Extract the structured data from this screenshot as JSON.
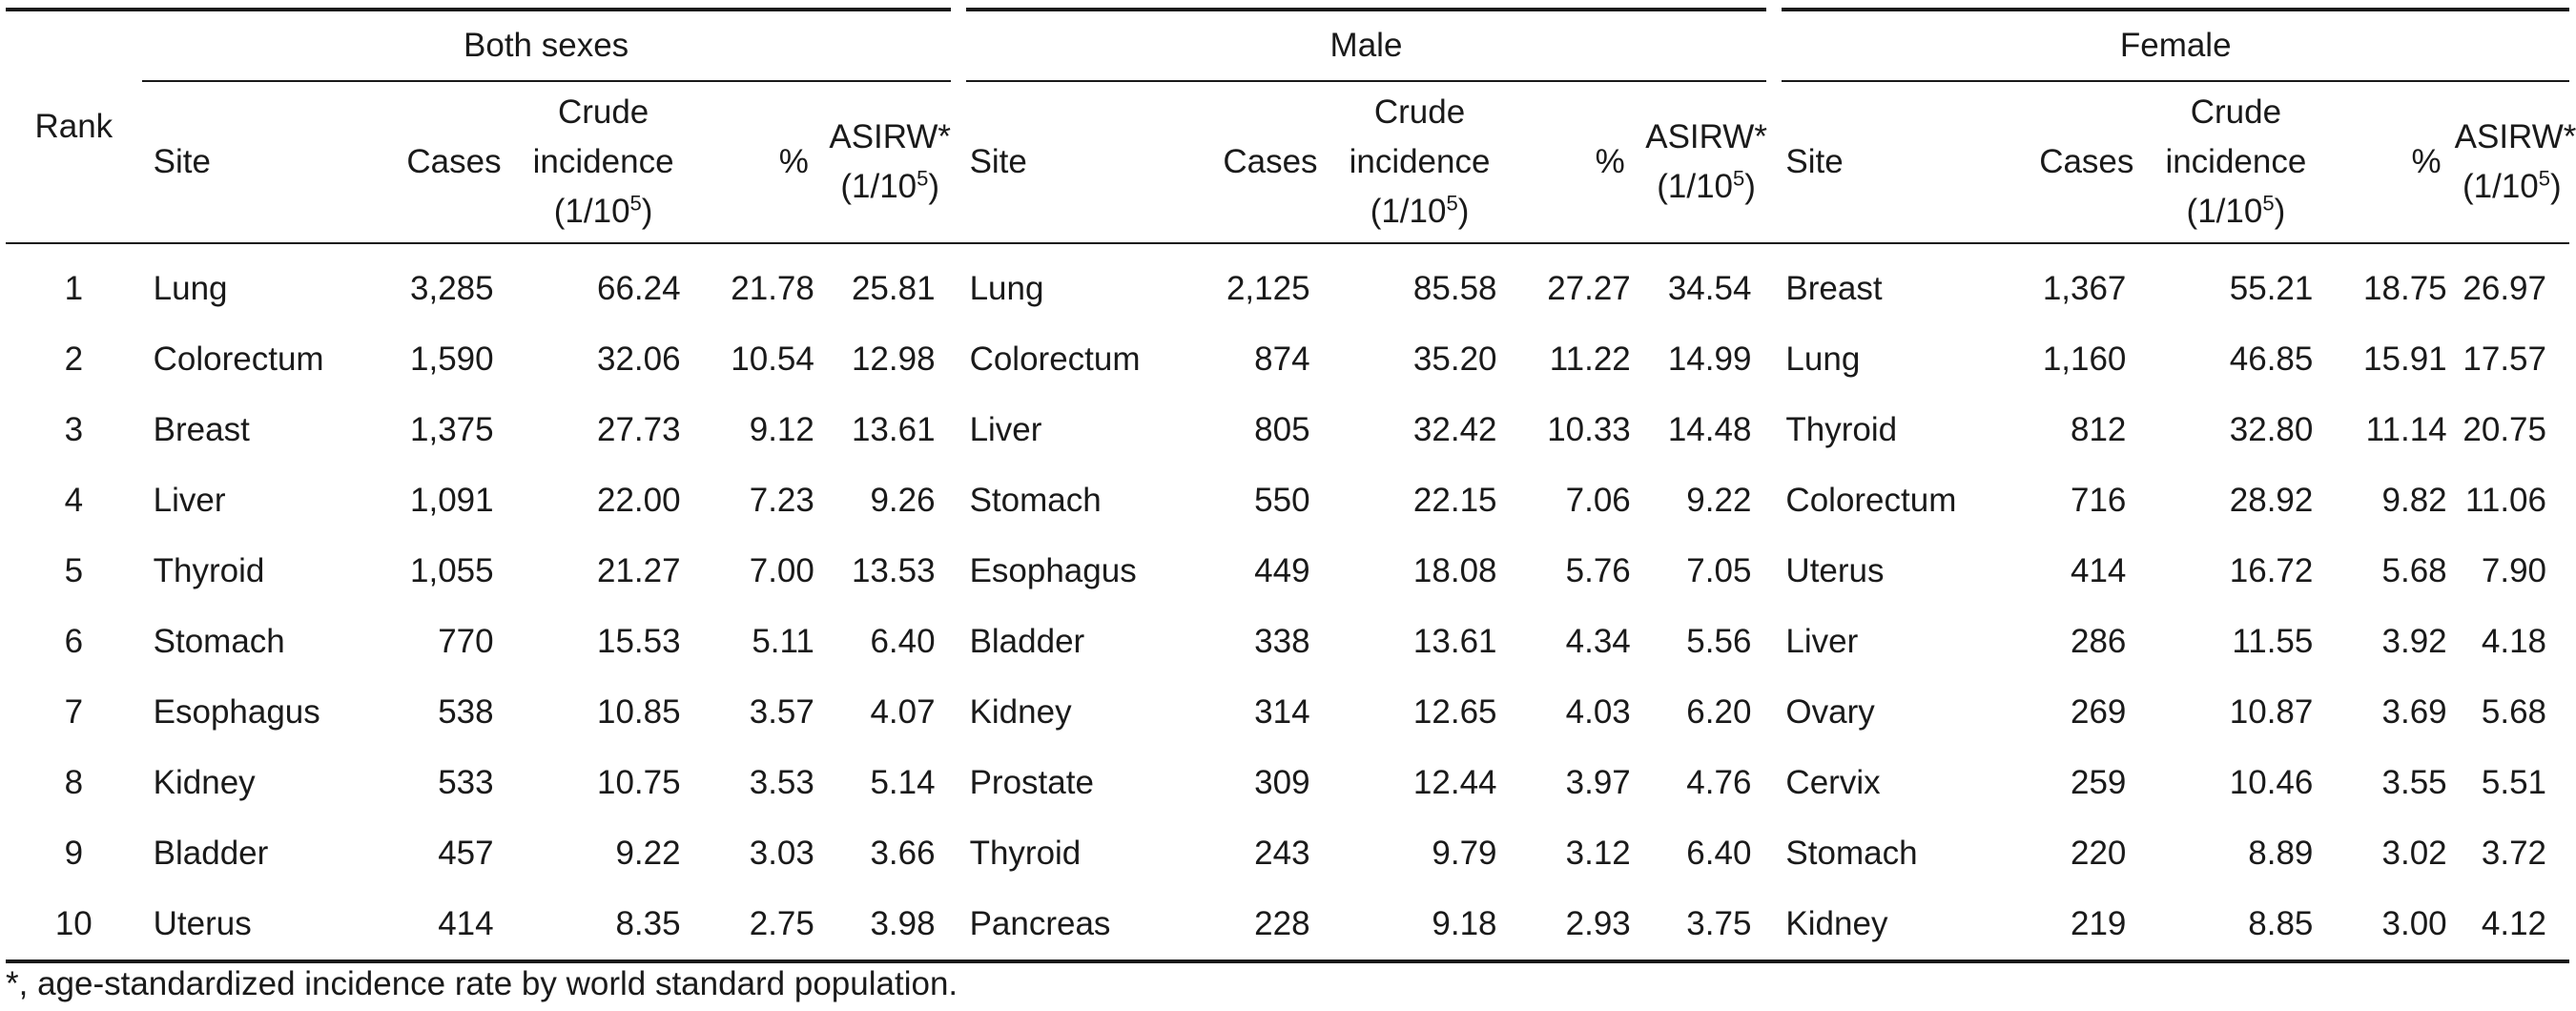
{
  "header": {
    "rank": "Rank",
    "groups": [
      "Both sexes",
      "Male",
      "Female"
    ],
    "site": "Site",
    "cases": "Cases",
    "crude_line1": "Crude",
    "crude_line2": "incidence",
    "crude_line3a": "(1/10",
    "crude_sup": "5",
    "crude_line3b": ")",
    "pct": "%",
    "asirw_line1": "ASIRW*",
    "asirw_line2a": "(1/10",
    "asirw_sup": "5",
    "asirw_line2b": ")"
  },
  "rows": [
    {
      "rank": "1",
      "both": [
        "Lung",
        "3,285",
        "66.24",
        "21.78",
        "25.81"
      ],
      "male": [
        "Lung",
        "2,125",
        "85.58",
        "27.27",
        "34.54"
      ],
      "female": [
        "Breast",
        "1,367",
        "55.21",
        "18.75",
        "26.97"
      ]
    },
    {
      "rank": "2",
      "both": [
        "Colorectum",
        "1,590",
        "32.06",
        "10.54",
        "12.98"
      ],
      "male": [
        "Colorectum",
        "874",
        "35.20",
        "11.22",
        "14.99"
      ],
      "female": [
        "Lung",
        "1,160",
        "46.85",
        "15.91",
        "17.57"
      ]
    },
    {
      "rank": "3",
      "both": [
        "Breast",
        "1,375",
        "27.73",
        "9.12",
        "13.61"
      ],
      "male": [
        "Liver",
        "805",
        "32.42",
        "10.33",
        "14.48"
      ],
      "female": [
        "Thyroid",
        "812",
        "32.80",
        "11.14",
        "20.75"
      ]
    },
    {
      "rank": "4",
      "both": [
        "Liver",
        "1,091",
        "22.00",
        "7.23",
        "9.26"
      ],
      "male": [
        "Stomach",
        "550",
        "22.15",
        "7.06",
        "9.22"
      ],
      "female": [
        "Colorectum",
        "716",
        "28.92",
        "9.82",
        "11.06"
      ]
    },
    {
      "rank": "5",
      "both": [
        "Thyroid",
        "1,055",
        "21.27",
        "7.00",
        "13.53"
      ],
      "male": [
        "Esophagus",
        "449",
        "18.08",
        "5.76",
        "7.05"
      ],
      "female": [
        "Uterus",
        "414",
        "16.72",
        "5.68",
        "7.90"
      ]
    },
    {
      "rank": "6",
      "both": [
        "Stomach",
        "770",
        "15.53",
        "5.11",
        "6.40"
      ],
      "male": [
        "Bladder",
        "338",
        "13.61",
        "4.34",
        "5.56"
      ],
      "female": [
        "Liver",
        "286",
        "11.55",
        "3.92",
        "4.18"
      ]
    },
    {
      "rank": "7",
      "both": [
        "Esophagus",
        "538",
        "10.85",
        "3.57",
        "4.07"
      ],
      "male": [
        "Kidney",
        "314",
        "12.65",
        "4.03",
        "6.20"
      ],
      "female": [
        "Ovary",
        "269",
        "10.87",
        "3.69",
        "5.68"
      ]
    },
    {
      "rank": "8",
      "both": [
        "Kidney",
        "533",
        "10.75",
        "3.53",
        "5.14"
      ],
      "male": [
        "Prostate",
        "309",
        "12.44",
        "3.97",
        "4.76"
      ],
      "female": [
        "Cervix",
        "259",
        "10.46",
        "3.55",
        "5.51"
      ]
    },
    {
      "rank": "9",
      "both": [
        "Bladder",
        "457",
        "9.22",
        "3.03",
        "3.66"
      ],
      "male": [
        "Thyroid",
        "243",
        "9.79",
        "3.12",
        "6.40"
      ],
      "female": [
        "Stomach",
        "220",
        "8.89",
        "3.02",
        "3.72"
      ]
    },
    {
      "rank": "10",
      "both": [
        "Uterus",
        "414",
        "8.35",
        "2.75",
        "3.98"
      ],
      "male": [
        "Pancreas",
        "228",
        "9.18",
        "2.93",
        "3.75"
      ],
      "female": [
        "Kidney",
        "219",
        "8.85",
        "3.00",
        "4.12"
      ]
    }
  ],
  "footnote": "*, age-standardized incidence rate by world standard population."
}
